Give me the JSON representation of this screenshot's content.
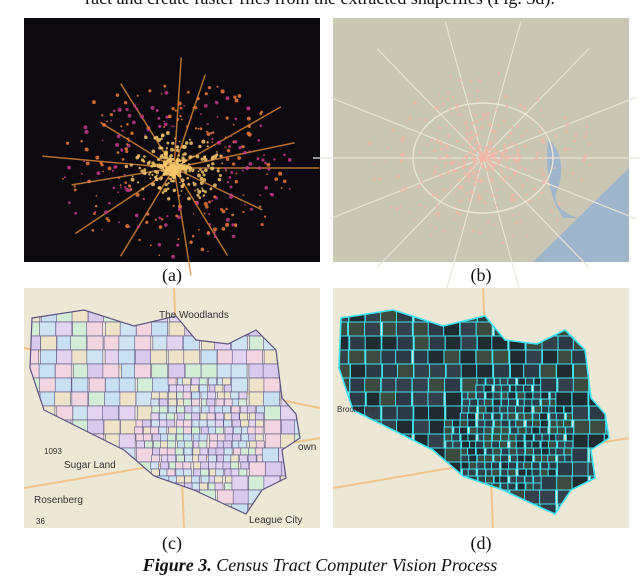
{
  "header_text": "ract and create raster files from the extracted shapefiles (Fig. 3d).",
  "panels": [
    {
      "label": "(a)"
    },
    {
      "label": "(b)"
    },
    {
      "label": "(c)"
    },
    {
      "label": "(d)"
    }
  ],
  "map_c_labels": [
    "The Woodlands",
    "Sugar Land",
    "Rosenberg",
    "League City",
    "own",
    "1093",
    "36"
  ],
  "map_d_labels": [
    "Brookshire"
  ],
  "caption": {
    "number": "Figure 3.",
    "title": "Census Tract Computer Vision Process"
  }
}
